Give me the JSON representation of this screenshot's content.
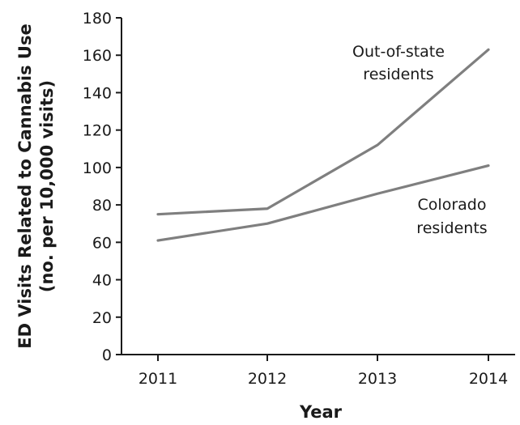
{
  "chart_data": {
    "type": "line",
    "xlabel": "Year",
    "ylabel_lines": [
      "ED Visits Related to Cannabis Use",
      "(no. per 10,000 visits)"
    ],
    "x": [
      "2011",
      "2012",
      "2013",
      "2014"
    ],
    "ylim": [
      0,
      180
    ],
    "yticks": [
      0,
      20,
      40,
      60,
      80,
      100,
      120,
      140,
      160,
      180
    ],
    "grid": false,
    "series": [
      {
        "name_lines": [
          "Out-of-state",
          "residents"
        ],
        "color": "#7f7f7f",
        "values": [
          75,
          78,
          112,
          163
        ]
      },
      {
        "name_lines": [
          "Colorado",
          "residents"
        ],
        "color": "#7f7f7f",
        "values": [
          61,
          70,
          86,
          101
        ]
      }
    ]
  }
}
